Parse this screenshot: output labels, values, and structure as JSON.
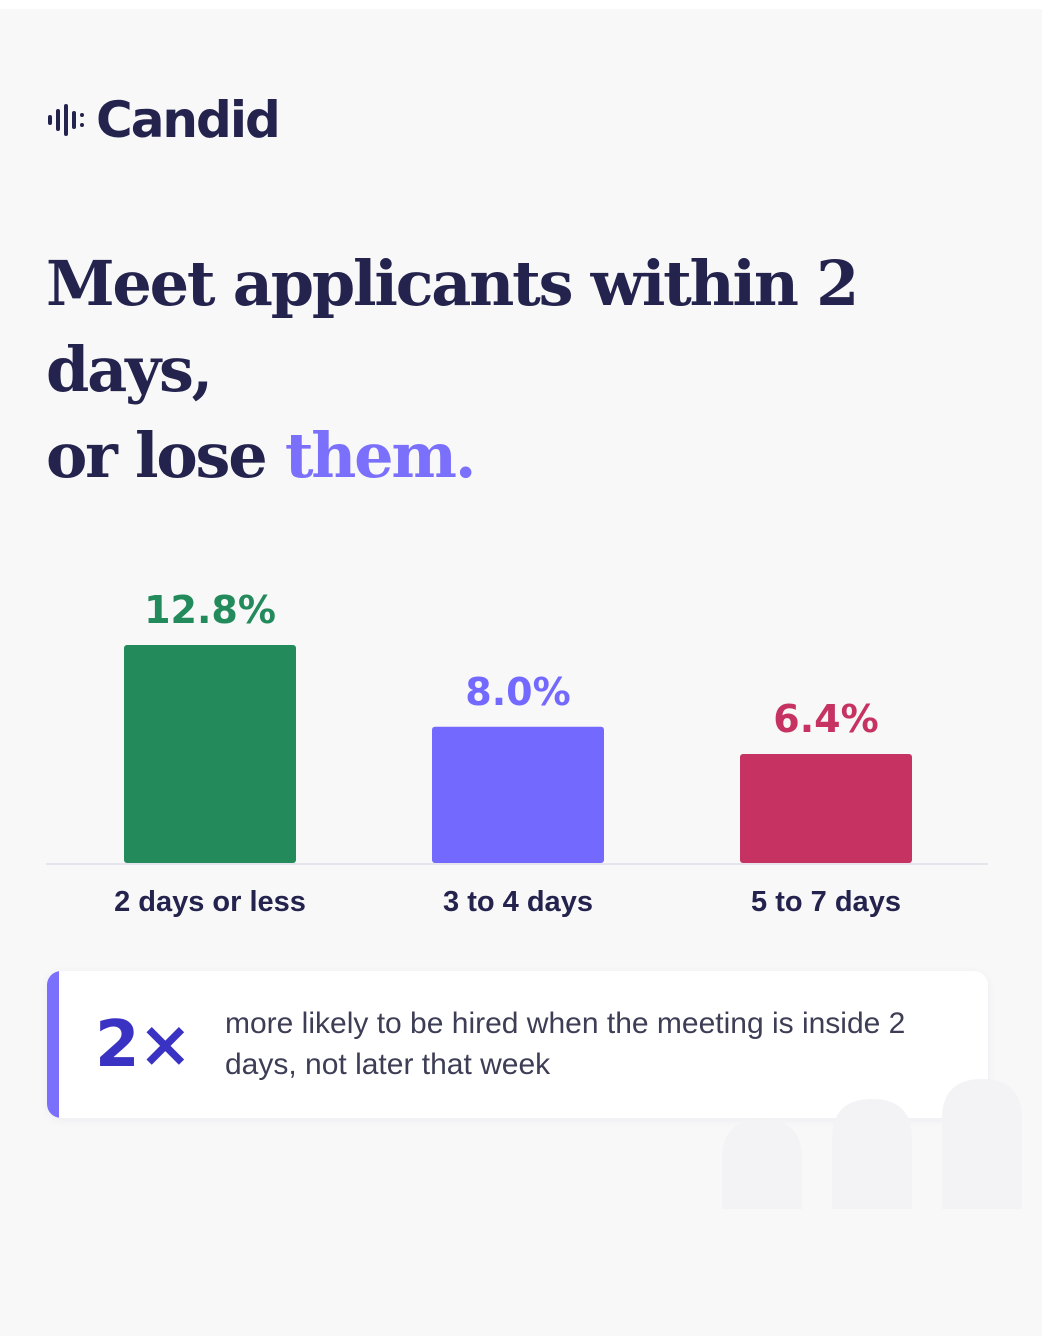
{
  "brand": {
    "name": "Candid",
    "icon": "soundwave-icon"
  },
  "headline": {
    "line1": "Meet applicants within 2 days,",
    "line2_prefix": "or lose ",
    "line2_accent": "them."
  },
  "colors": {
    "navy": "#24234d",
    "accent": "#7b70fb",
    "green": "#238a5b",
    "purple": "#7469ff",
    "red": "#c63262",
    "background": "#f8f8f9"
  },
  "chart_data": {
    "type": "bar",
    "title": "",
    "xlabel": "",
    "ylabel": "",
    "ylim": [
      0,
      12.8
    ],
    "grid": false,
    "legend": "none",
    "categories": [
      "2 days or less",
      "3 to 4 days",
      "5 to 7 days"
    ],
    "values": [
      12.8,
      8.0,
      6.4
    ],
    "value_labels": [
      "12.8%",
      "8.0%",
      "6.4%"
    ],
    "colors": [
      "#238a5b",
      "#7469ff",
      "#c63262"
    ]
  },
  "callout": {
    "stat": "2×",
    "text": "more likely to be hired when the meeting is inside 2 days, not later that week"
  }
}
